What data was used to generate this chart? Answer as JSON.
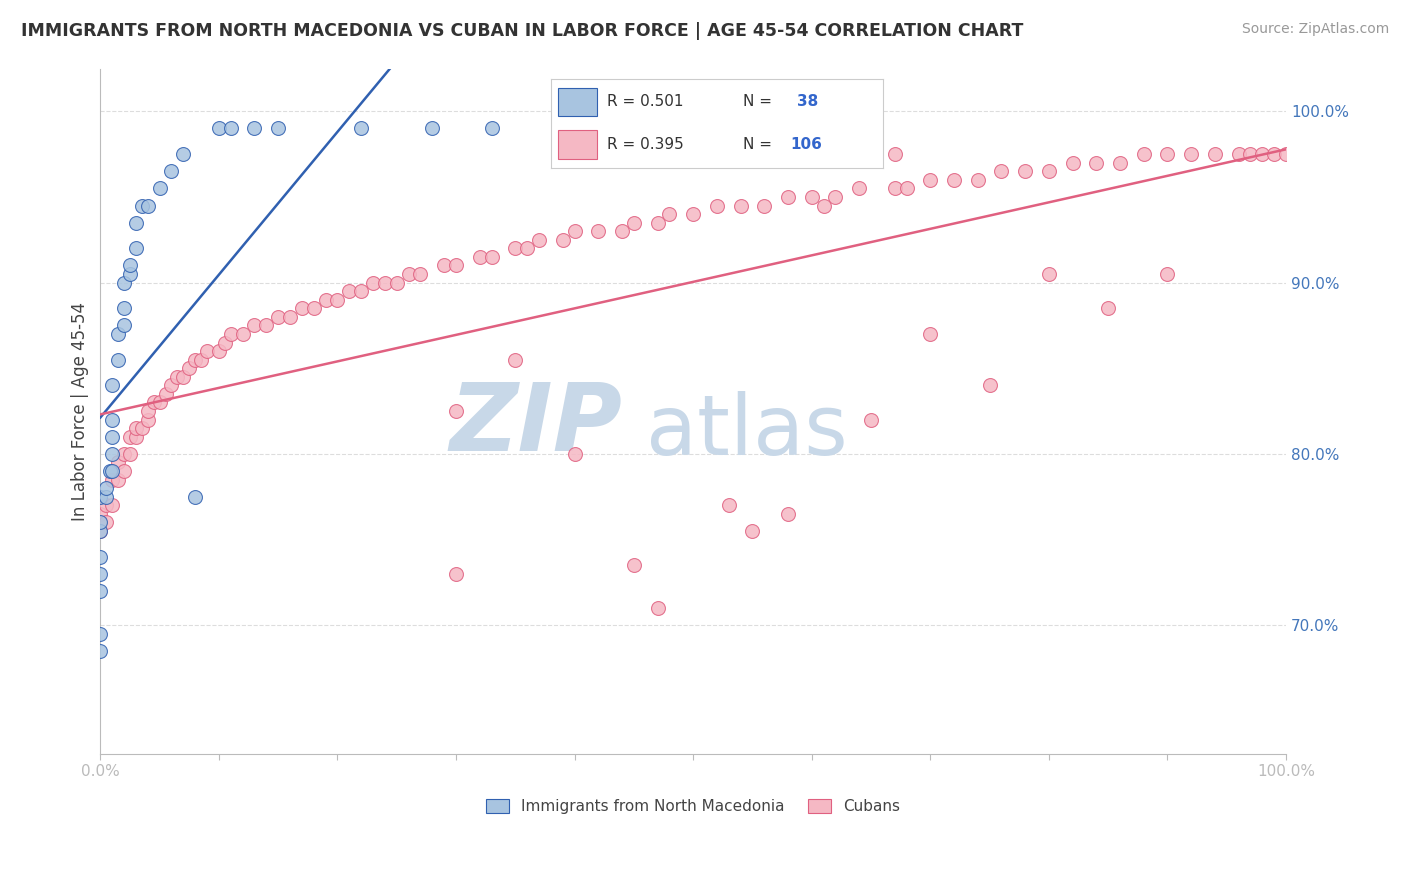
{
  "title": "IMMIGRANTS FROM NORTH MACEDONIA VS CUBAN IN LABOR FORCE | AGE 45-54 CORRELATION CHART",
  "source": "Source: ZipAtlas.com",
  "ylabel": "In Labor Force | Age 45-54",
  "xlim": [
    0.0,
    1.0
  ],
  "ylim": [
    0.625,
    1.025
  ],
  "yticks": [
    0.7,
    0.8,
    0.9,
    1.0
  ],
  "ytick_labels": [
    "70.0%",
    "80.0%",
    "90.0%",
    "100.0%"
  ],
  "blue_color": "#A8C4E0",
  "pink_color": "#F5B8C4",
  "trend_blue": "#3060B0",
  "trend_pink": "#E06080",
  "watermark_zip": "ZIP",
  "watermark_atlas": "atlas",
  "watermark_color": "#C8D8E8",
  "background": "#FFFFFF",
  "grid_color": "#DDDDDD",
  "blue_scatter_x": [
    0.0,
    0.0,
    0.0,
    0.0,
    0.0,
    0.0,
    0.0,
    0.0,
    0.005,
    0.005,
    0.008,
    0.01,
    0.01,
    0.01,
    0.01,
    0.01,
    0.015,
    0.015,
    0.02,
    0.02,
    0.02,
    0.025,
    0.025,
    0.03,
    0.03,
    0.035,
    0.04,
    0.05,
    0.06,
    0.07,
    0.08,
    0.1,
    0.11,
    0.13,
    0.15,
    0.22,
    0.28,
    0.33
  ],
  "blue_scatter_y": [
    0.685,
    0.695,
    0.72,
    0.73,
    0.74,
    0.755,
    0.76,
    0.775,
    0.775,
    0.78,
    0.79,
    0.79,
    0.8,
    0.81,
    0.82,
    0.84,
    0.855,
    0.87,
    0.875,
    0.885,
    0.9,
    0.905,
    0.91,
    0.92,
    0.935,
    0.945,
    0.945,
    0.955,
    0.965,
    0.975,
    0.775,
    0.99,
    0.99,
    0.99,
    0.99,
    0.99,
    0.99,
    0.99
  ],
  "pink_scatter_x": [
    0.0,
    0.0,
    0.005,
    0.005,
    0.01,
    0.01,
    0.015,
    0.015,
    0.02,
    0.02,
    0.025,
    0.025,
    0.03,
    0.03,
    0.035,
    0.04,
    0.04,
    0.045,
    0.05,
    0.055,
    0.06,
    0.065,
    0.07,
    0.075,
    0.08,
    0.085,
    0.09,
    0.1,
    0.105,
    0.11,
    0.12,
    0.13,
    0.14,
    0.15,
    0.16,
    0.17,
    0.18,
    0.19,
    0.2,
    0.21,
    0.22,
    0.23,
    0.24,
    0.25,
    0.26,
    0.27,
    0.29,
    0.3,
    0.32,
    0.33,
    0.35,
    0.36,
    0.37,
    0.39,
    0.4,
    0.42,
    0.44,
    0.45,
    0.47,
    0.48,
    0.5,
    0.52,
    0.54,
    0.56,
    0.58,
    0.6,
    0.62,
    0.64,
    0.67,
    0.68,
    0.7,
    0.72,
    0.74,
    0.76,
    0.78,
    0.8,
    0.82,
    0.84,
    0.86,
    0.88,
    0.9,
    0.92,
    0.94,
    0.96,
    0.97,
    0.98,
    0.99,
    1.0,
    0.3,
    0.35,
    0.4,
    0.47,
    0.53,
    0.58,
    0.65,
    0.7,
    0.75,
    0.8,
    0.85,
    0.9,
    0.56,
    0.61,
    0.67,
    0.3,
    0.45,
    0.55
  ],
  "pink_scatter_y": [
    0.755,
    0.765,
    0.76,
    0.77,
    0.77,
    0.785,
    0.785,
    0.795,
    0.79,
    0.8,
    0.8,
    0.81,
    0.81,
    0.815,
    0.815,
    0.82,
    0.825,
    0.83,
    0.83,
    0.835,
    0.84,
    0.845,
    0.845,
    0.85,
    0.855,
    0.855,
    0.86,
    0.86,
    0.865,
    0.87,
    0.87,
    0.875,
    0.875,
    0.88,
    0.88,
    0.885,
    0.885,
    0.89,
    0.89,
    0.895,
    0.895,
    0.9,
    0.9,
    0.9,
    0.905,
    0.905,
    0.91,
    0.91,
    0.915,
    0.915,
    0.92,
    0.92,
    0.925,
    0.925,
    0.93,
    0.93,
    0.93,
    0.935,
    0.935,
    0.94,
    0.94,
    0.945,
    0.945,
    0.945,
    0.95,
    0.95,
    0.95,
    0.955,
    0.955,
    0.955,
    0.96,
    0.96,
    0.96,
    0.965,
    0.965,
    0.965,
    0.97,
    0.97,
    0.97,
    0.975,
    0.975,
    0.975,
    0.975,
    0.975,
    0.975,
    0.975,
    0.975,
    0.975,
    0.825,
    0.855,
    0.8,
    0.71,
    0.77,
    0.765,
    0.82,
    0.87,
    0.84,
    0.905,
    0.885,
    0.905,
    0.975,
    0.945,
    0.975,
    0.73,
    0.735,
    0.755
  ]
}
